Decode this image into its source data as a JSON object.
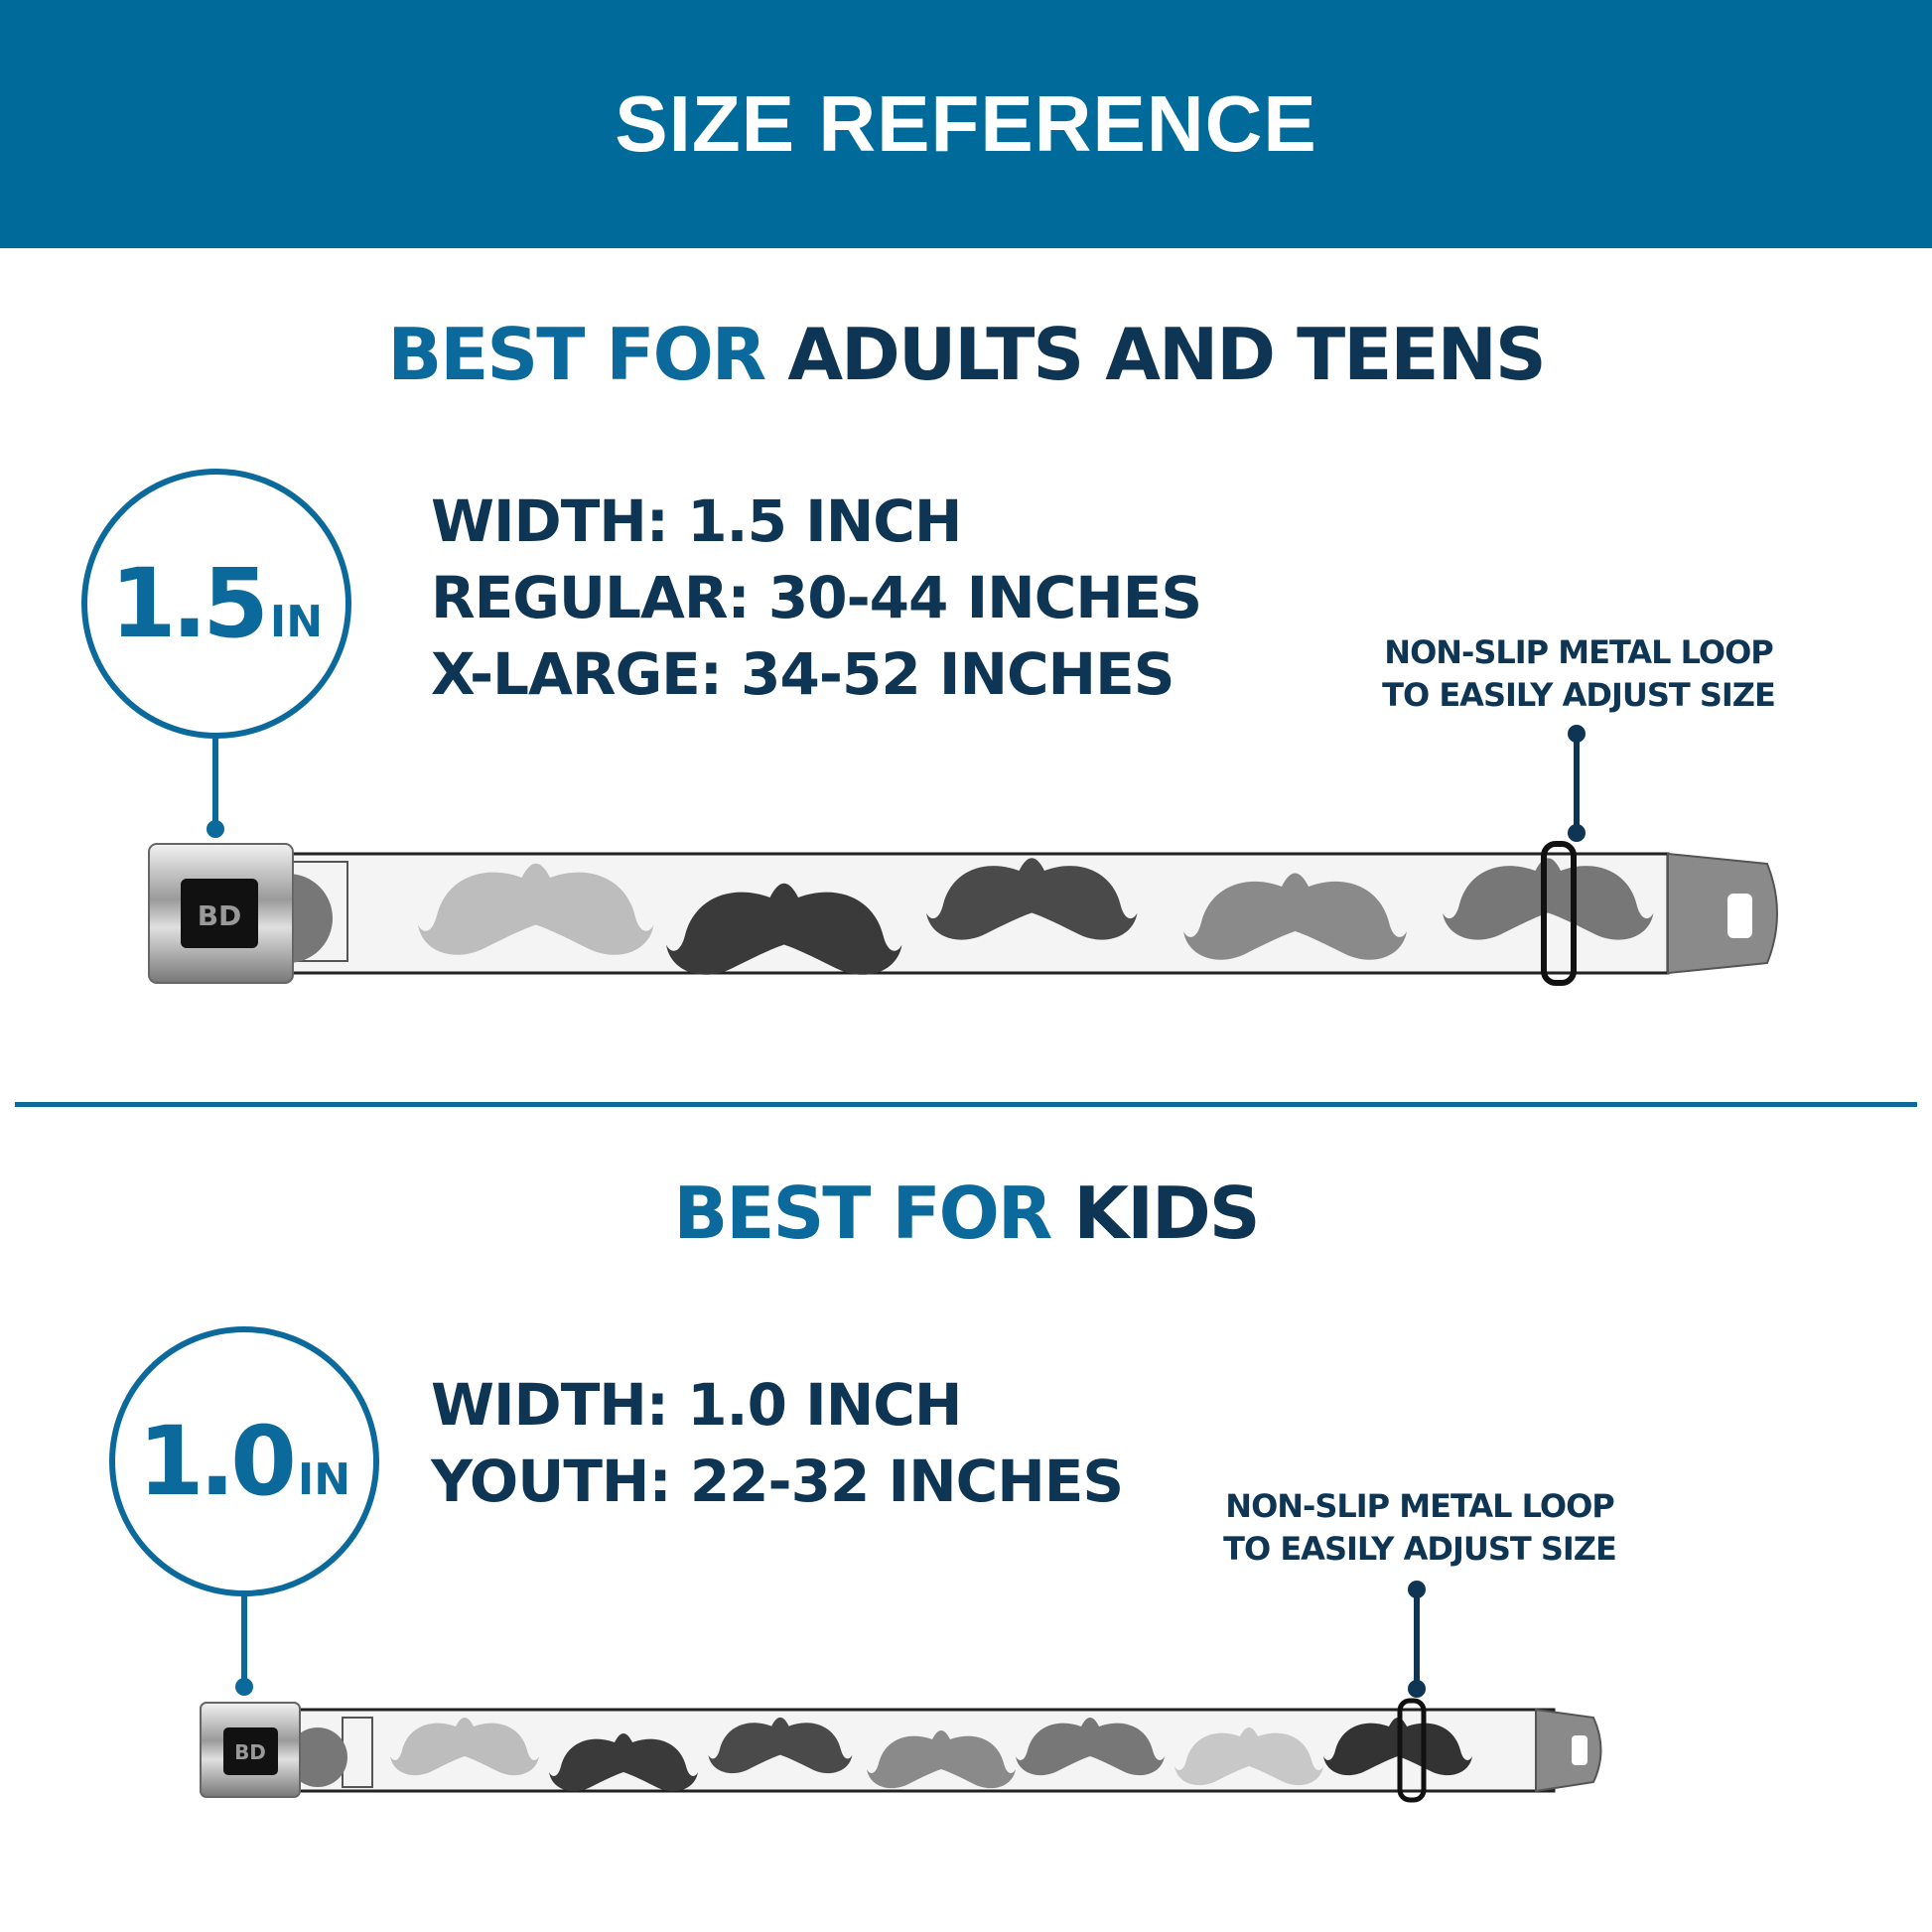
{
  "header": {
    "title": "SIZE REFERENCE"
  },
  "colors": {
    "header_bg": "#006b9a",
    "accent_blue": "#0b6a9b",
    "navy": "#0e3553"
  },
  "adults": {
    "title_prefix": "BEST FOR",
    "title_main": "ADULTS AND TEENS",
    "badge_value": "1.5",
    "badge_unit": "IN",
    "specs": [
      "WIDTH: 1.5 INCH",
      "REGULAR: 30-44 INCHES",
      "X-LARGE: 34-52 INCHES"
    ],
    "callout": [
      "NON-SLIP METAL LOOP",
      "TO EASILY ADJUST SIZE"
    ],
    "belt_logo": "BD"
  },
  "kids": {
    "title_prefix": "BEST FOR",
    "title_main": "KIDS",
    "badge_value": "1.0",
    "badge_unit": "IN",
    "specs": [
      "WIDTH: 1.0 INCH",
      "YOUTH: 22-32 INCHES"
    ],
    "callout": [
      "NON-SLIP METAL LOOP",
      "TO EASILY ADJUST SIZE"
    ],
    "belt_logo": "BD"
  }
}
